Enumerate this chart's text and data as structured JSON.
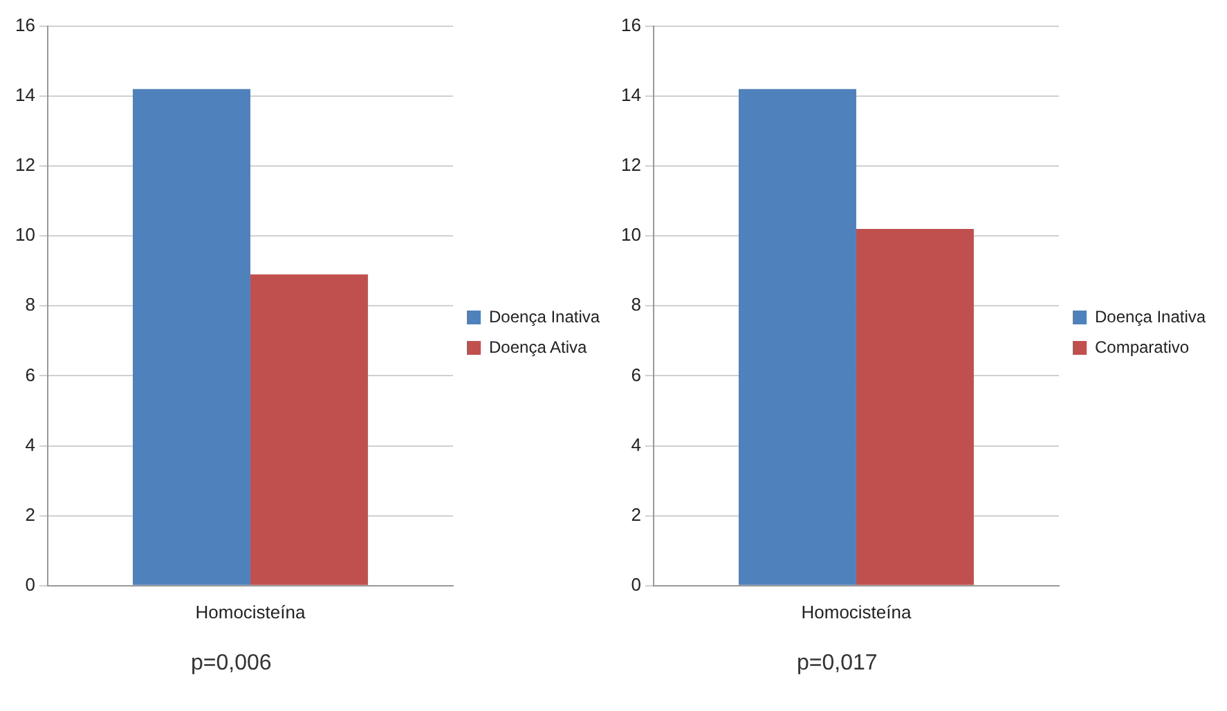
{
  "chart_data": [
    {
      "type": "bar",
      "categories": [
        "Homocisteína"
      ],
      "series": [
        {
          "name": "Doença Inativa",
          "color": "#4f81bd",
          "values": [
            14.2
          ]
        },
        {
          "name": "Doença Ativa",
          "color": "#c0504d",
          "values": [
            8.9
          ]
        }
      ],
      "ylim": [
        0,
        16
      ],
      "yticks": [
        0,
        2,
        4,
        6,
        8,
        10,
        12,
        14,
        16
      ],
      "grid": "y",
      "legend": "right",
      "annotations": [
        "p=0,006"
      ]
    },
    {
      "type": "bar",
      "categories": [
        "Homocisteína"
      ],
      "series": [
        {
          "name": "Doença Inativa",
          "color": "#4f81bd",
          "values": [
            14.2
          ]
        },
        {
          "name": "Comparativo",
          "color": "#c0504d",
          "values": [
            10.2
          ]
        }
      ],
      "ylim": [
        0,
        16
      ],
      "yticks": [
        0,
        2,
        4,
        6,
        8,
        10,
        12,
        14,
        16
      ],
      "grid": "y",
      "legend": "right",
      "annotations": [
        "p=0,017"
      ]
    }
  ]
}
